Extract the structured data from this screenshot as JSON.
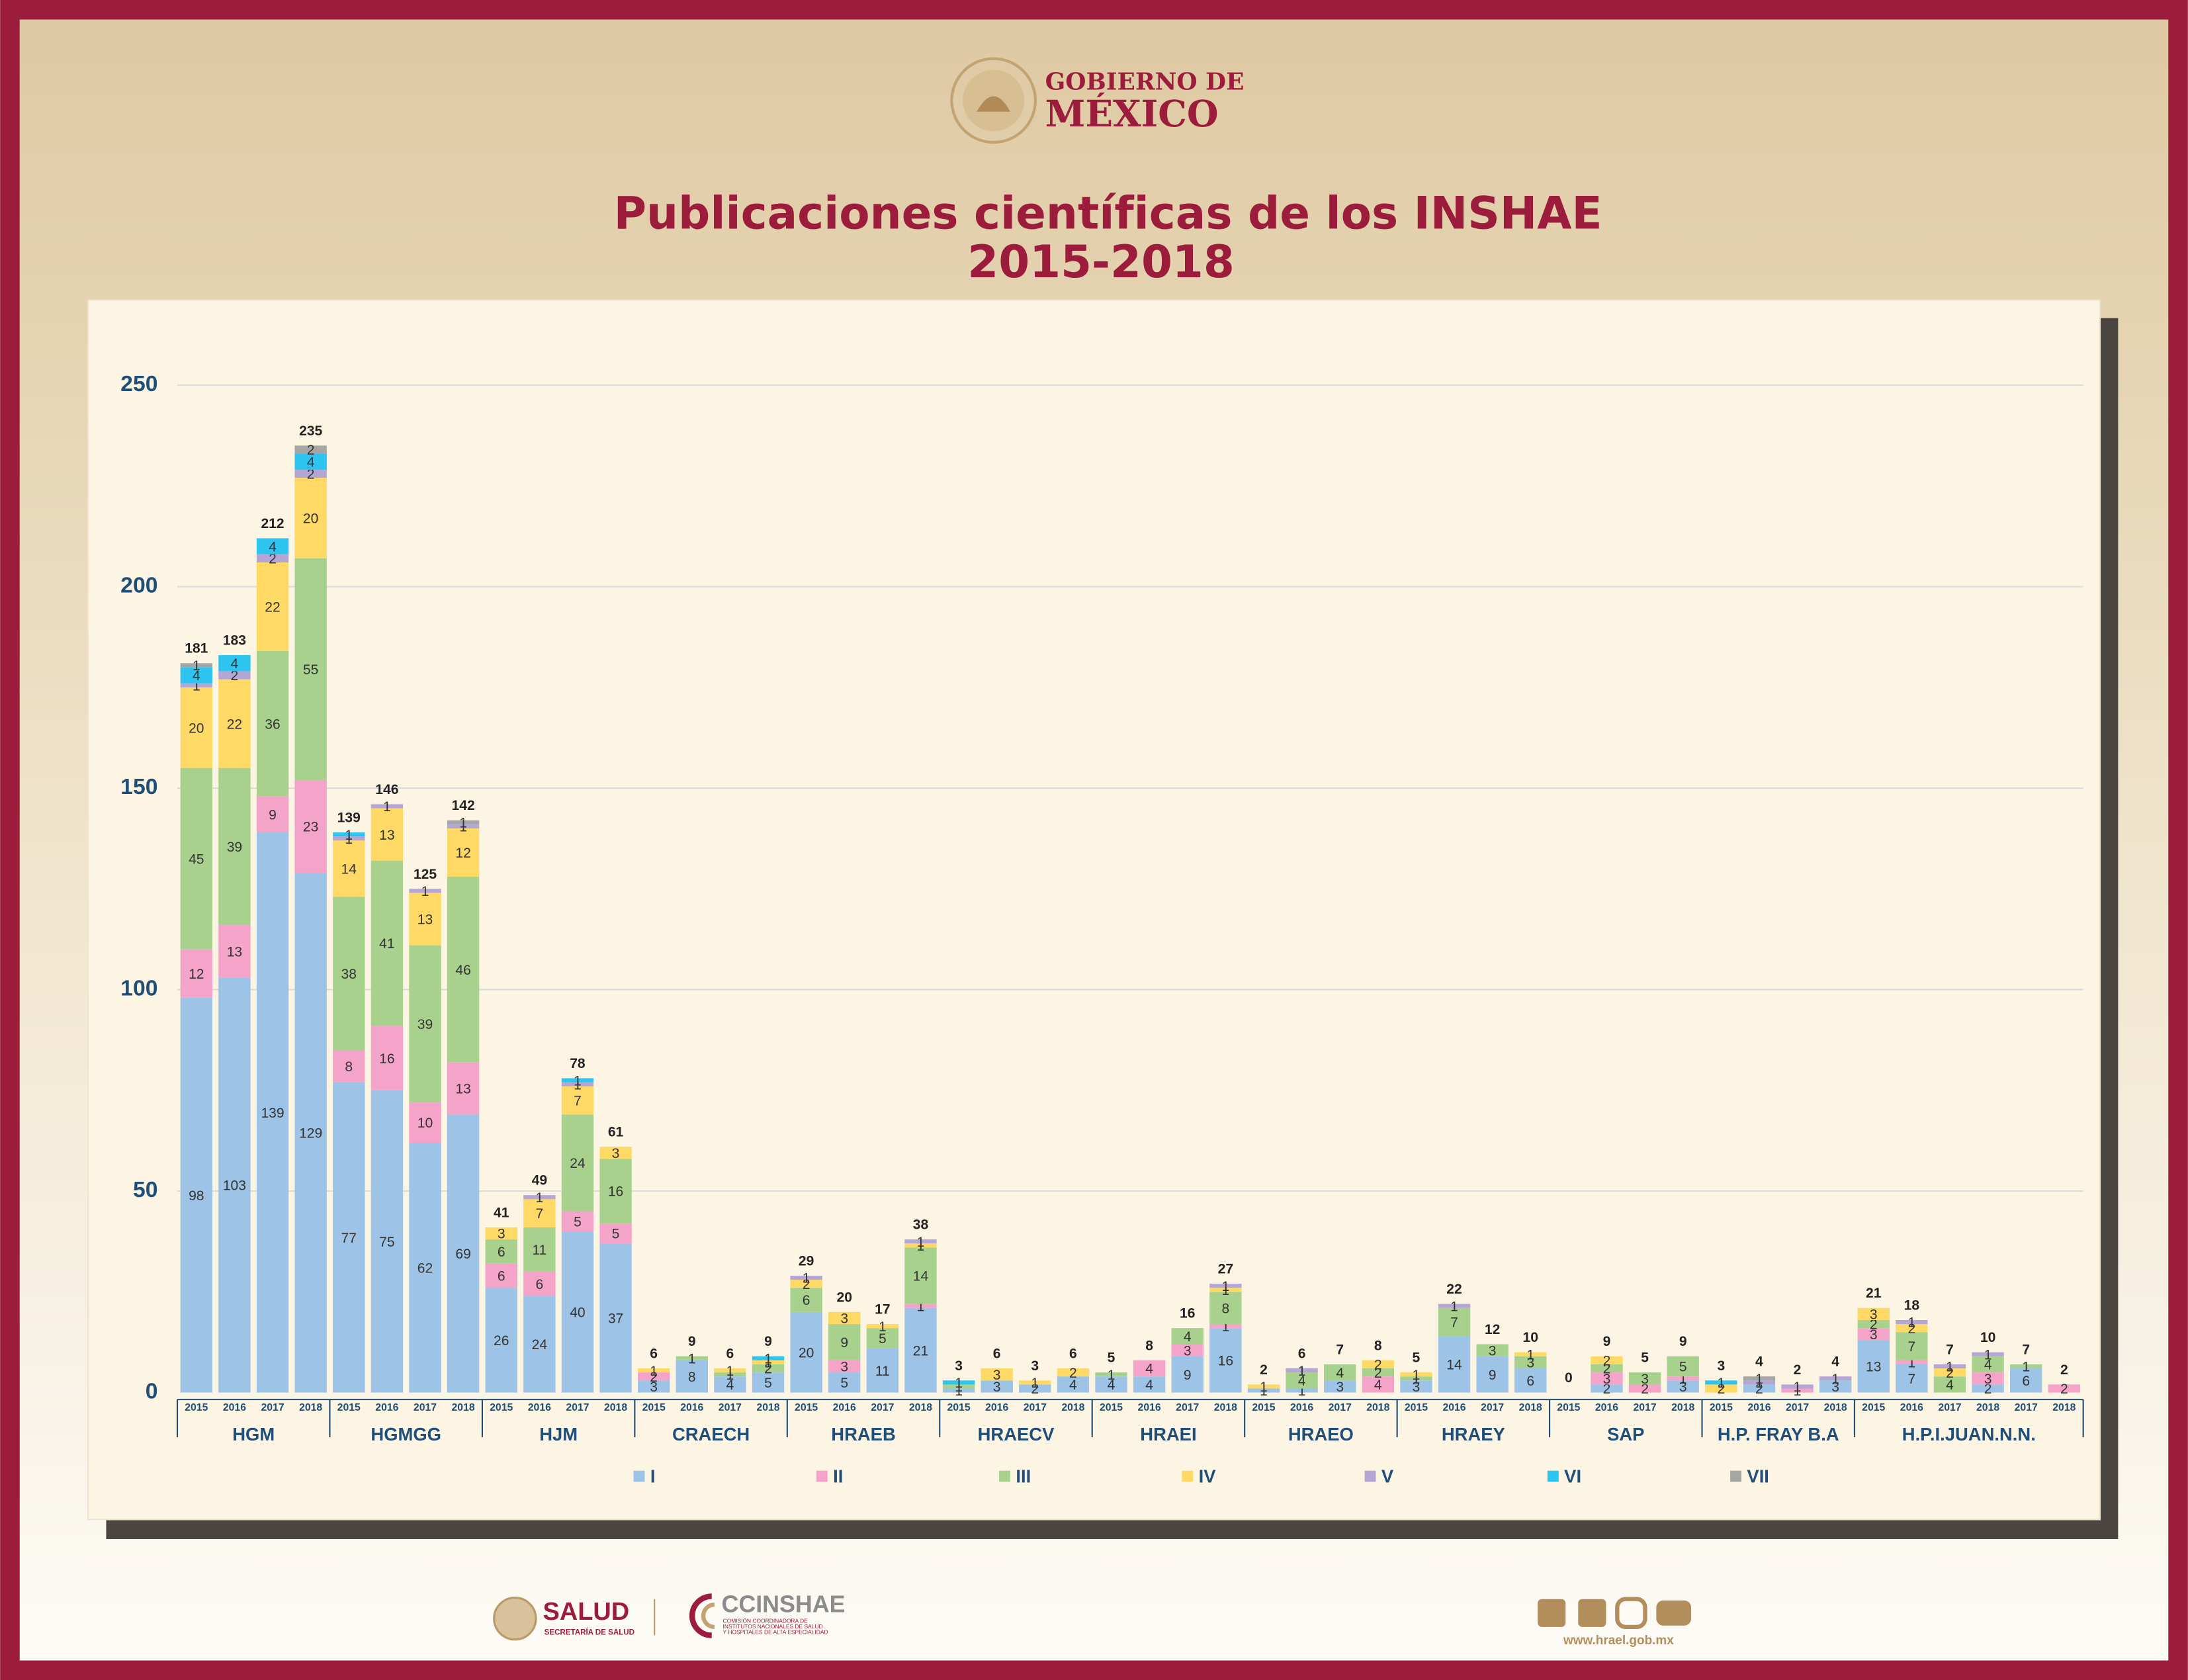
{
  "header": {
    "brand_top": "GOBIERNO DE",
    "brand_bottom": "MÉXICO"
  },
  "chart_data": {
    "type": "stacked-bar",
    "title": "Publicaciones científicas de los INSHAE",
    "subtitle": "2015-2018",
    "groups": [
      {
        "label": "HGM",
        "categories": [
          "2015",
          "2016",
          "2017",
          "2018"
        ]
      },
      {
        "label": "HGMGG",
        "categories": [
          "2015",
          "2016",
          "2017",
          "2018"
        ]
      },
      {
        "label": "HJM",
        "categories": [
          "2015",
          "2016",
          "2017",
          "2018"
        ]
      },
      {
        "label": "CRAECH",
        "categories": [
          "2015",
          "2016",
          "2017",
          "2018"
        ]
      },
      {
        "label": "HRAEB",
        "categories": [
          "2015",
          "2016",
          "2017",
          "2018"
        ]
      },
      {
        "label": "HRAECV",
        "categories": [
          "2015",
          "2016",
          "2017",
          "2018"
        ]
      },
      {
        "label": "HRAEI",
        "categories": [
          "2015",
          "2016",
          "2017",
          "2018"
        ]
      },
      {
        "label": "HRAEO",
        "categories": [
          "2015",
          "2016",
          "2017",
          "2018"
        ]
      },
      {
        "label": "HRAEY",
        "categories": [
          "2015",
          "2016",
          "2017",
          "2018"
        ]
      },
      {
        "label": "SAP",
        "categories": [
          "2015",
          "2016",
          "2017",
          "2018"
        ]
      },
      {
        "label": "H.P. FRAY B.A",
        "categories": [
          "2015",
          "2016",
          "2017",
          "2018"
        ]
      },
      {
        "label": "H.P.I.JUAN.N.N.",
        "categories": [
          "2015",
          "2016",
          "2017",
          "2018",
          "2017",
          "2018"
        ]
      }
    ],
    "series": [
      {
        "name": "I",
        "color": "#9dc3e6",
        "values": [
          98,
          103,
          139,
          129,
          77,
          75,
          62,
          69,
          26,
          24,
          40,
          37,
          3,
          8,
          4,
          5,
          20,
          5,
          11,
          21,
          1,
          3,
          2,
          4,
          4,
          4,
          9,
          16,
          1,
          1,
          3,
          0,
          3,
          14,
          9,
          6,
          0,
          2,
          0,
          3,
          0,
          2,
          0,
          3,
          13,
          7,
          0,
          2,
          6,
          0
        ]
      },
      {
        "name": "II",
        "color": "#f4a3c9",
        "values": [
          12,
          13,
          9,
          23,
          8,
          16,
          10,
          13,
          6,
          6,
          5,
          5,
          2,
          0,
          0,
          0,
          0,
          3,
          0,
          1,
          0,
          0,
          0,
          0,
          0,
          4,
          3,
          1,
          0,
          0,
          0,
          4,
          0,
          0,
          0,
          0,
          0,
          3,
          2,
          1,
          0,
          0,
          1,
          0,
          3,
          1,
          0,
          3,
          0,
          2
        ]
      },
      {
        "name": "III",
        "color": "#a9d18e",
        "values": [
          45,
          39,
          36,
          55,
          38,
          41,
          39,
          46,
          6,
          11,
          24,
          16,
          0,
          1,
          1,
          2,
          6,
          9,
          5,
          14,
          1,
          0,
          0,
          0,
          1,
          0,
          4,
          8,
          0,
          4,
          4,
          2,
          1,
          7,
          3,
          3,
          0,
          2,
          3,
          5,
          0,
          0,
          0,
          0,
          2,
          7,
          4,
          4,
          1,
          0
        ]
      },
      {
        "name": "IV",
        "color": "#ffd966",
        "values": [
          20,
          22,
          22,
          20,
          14,
          13,
          13,
          12,
          3,
          7,
          7,
          3,
          1,
          0,
          1,
          1,
          2,
          3,
          1,
          1,
          0,
          3,
          1,
          2,
          0,
          0,
          0,
          1,
          1,
          0,
          0,
          2,
          1,
          0,
          0,
          1,
          0,
          2,
          0,
          0,
          2,
          0,
          0,
          0,
          3,
          2,
          2,
          0,
          0,
          0
        ]
      },
      {
        "name": "V",
        "color": "#b4a7d6",
        "values": [
          1,
          2,
          2,
          2,
          1,
          1,
          1,
          1,
          0,
          1,
          1,
          0,
          0,
          0,
          0,
          0,
          1,
          0,
          0,
          1,
          0,
          0,
          0,
          0,
          0,
          0,
          0,
          1,
          0,
          1,
          0,
          0,
          0,
          1,
          0,
          0,
          0,
          0,
          0,
          0,
          0,
          1,
          1,
          1,
          0,
          1,
          1,
          1,
          0,
          0
        ]
      },
      {
        "name": "VI",
        "color": "#2ec4f0",
        "values": [
          4,
          4,
          4,
          4,
          1,
          0,
          0,
          0,
          0,
          0,
          1,
          0,
          0,
          0,
          0,
          1,
          0,
          0,
          0,
          0,
          1,
          0,
          0,
          0,
          0,
          0,
          0,
          0,
          0,
          0,
          0,
          0,
          0,
          0,
          0,
          0,
          0,
          0,
          0,
          0,
          1,
          0,
          0,
          0,
          0,
          0,
          0,
          0,
          0,
          0
        ]
      },
      {
        "name": "VII",
        "color": "#a6a6a6",
        "values": [
          1,
          0,
          0,
          2,
          0,
          0,
          0,
          1,
          0,
          0,
          0,
          0,
          0,
          0,
          0,
          0,
          0,
          0,
          0,
          0,
          0,
          0,
          0,
          0,
          0,
          0,
          0,
          0,
          0,
          0,
          0,
          0,
          0,
          0,
          0,
          0,
          0,
          0,
          0,
          0,
          0,
          1,
          0,
          0,
          0,
          0,
          0,
          0,
          0,
          0
        ]
      }
    ],
    "totals": [
      181,
      183,
      212,
      235,
      139,
      146,
      125,
      142,
      41,
      49,
      78,
      61,
      6,
      9,
      6,
      9,
      29,
      20,
      17,
      38,
      3,
      6,
      3,
      6,
      5,
      8,
      16,
      27,
      2,
      6,
      7,
      8,
      5,
      22,
      12,
      10,
      0,
      9,
      5,
      9,
      3,
      4,
      2,
      4,
      21,
      18,
      7,
      10,
      7,
      2
    ],
    "ylim": [
      0,
      250
    ],
    "yticks": [
      0,
      50,
      100,
      150,
      200,
      250
    ],
    "grid": true
  },
  "footer": {
    "salud": "SALUD",
    "salud_sub": "SECRETARÍA DE SALUD",
    "cc": "CCINSHAE",
    "cc_sub_1": "COMISIÓN COORDINADORA DE",
    "cc_sub_2": "INSTITUTOS NACIONALES DE SALUD",
    "cc_sub_3": "Y HOSPITALES DE ALTA ESPECIALIDAD",
    "url": "www.hrael.gob.mx"
  }
}
